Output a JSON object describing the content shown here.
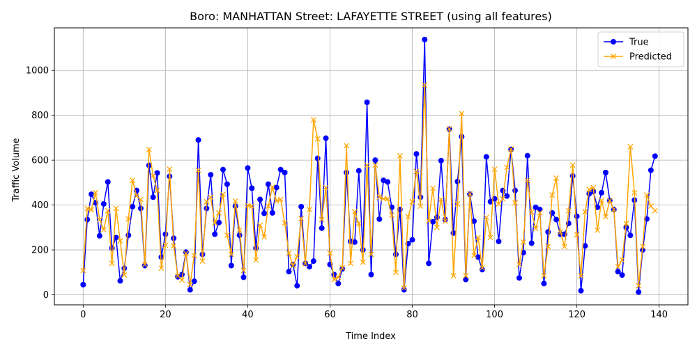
{
  "chart_data": {
    "type": "line",
    "title": "Boro: MANHATTAN Street: LAFAYETTE STREET (using all features)",
    "xlabel": "Time Index",
    "ylabel": "Traffic Volume",
    "xlim": [
      -7,
      147
    ],
    "ylim": [
      -45,
      1190
    ],
    "xticks": [
      0,
      20,
      40,
      60,
      80,
      100,
      120,
      140
    ],
    "yticks": [
      0,
      200,
      400,
      600,
      800,
      1000
    ],
    "grid": true,
    "legend_position": "top-right",
    "series": [
      {
        "name": "True",
        "color": "#0000ff",
        "marker": "circle",
        "values": [
          45,
          335,
          448,
          410,
          263,
          405,
          503,
          208,
          255,
          62,
          118,
          265,
          393,
          465,
          385,
          130,
          577,
          435,
          543,
          168,
          270,
          528,
          252,
          80,
          90,
          190,
          22,
          60,
          690,
          180,
          385,
          535,
          270,
          322,
          558,
          493,
          130,
          395,
          265,
          78,
          565,
          475,
          208,
          425,
          363,
          493,
          365,
          478,
          558,
          545,
          103,
          135,
          40,
          393,
          140,
          125,
          150,
          608,
          297,
          698,
          135,
          90,
          50,
          115,
          545,
          238,
          235,
          553,
          200,
          858,
          90,
          600,
          337,
          510,
          503,
          390,
          180,
          380,
          22,
          228,
          245,
          628,
          435,
          1138,
          140,
          325,
          345,
          598,
          335,
          738,
          275,
          505,
          705,
          68,
          448,
          328,
          168,
          112,
          615,
          415,
          428,
          238,
          465,
          440,
          648,
          465,
          75,
          188,
          620,
          230,
          390,
          380,
          50,
          280,
          365,
          335,
          270,
          270,
          318,
          530,
          350,
          18,
          218,
          450,
          460,
          390,
          455,
          545,
          420,
          380,
          103,
          88,
          300,
          265,
          422,
          12,
          200,
          338,
          555,
          618
        ]
      },
      {
        "name": "Predicted",
        "color": "#ffa500",
        "marker": "x",
        "values": [
          108,
          385,
          378,
          455,
          335,
          290,
          375,
          140,
          385,
          240,
          88,
          338,
          510,
          440,
          425,
          135,
          648,
          530,
          465,
          118,
          220,
          560,
          218,
          85,
          65,
          185,
          45,
          175,
          555,
          150,
          415,
          435,
          320,
          365,
          448,
          265,
          180,
          418,
          288,
          108,
          398,
          395,
          155,
          310,
          258,
          395,
          480,
          418,
          425,
          320,
          185,
          130,
          170,
          340,
          138,
          380,
          780,
          695,
          335,
          478,
          185,
          68,
          78,
          120,
          665,
          140,
          370,
          318,
          145,
          578,
          180,
          578,
          435,
          428,
          428,
          355,
          100,
          620,
          30,
          348,
          415,
          550,
          395,
          935,
          330,
          475,
          300,
          425,
          328,
          740,
          85,
          405,
          808,
          85,
          450,
          175,
          255,
          120,
          345,
          255,
          560,
          405,
          428,
          568,
          650,
          410,
          135,
          235,
          510,
          368,
          295,
          365,
          85,
          215,
          445,
          520,
          280,
          215,
          375,
          578,
          268,
          85,
          370,
          470,
          478,
          288,
          420,
          348,
          420,
          380,
          125,
          155,
          318,
          660,
          455,
          40,
          215,
          445,
          395,
          375
        ]
      }
    ]
  }
}
